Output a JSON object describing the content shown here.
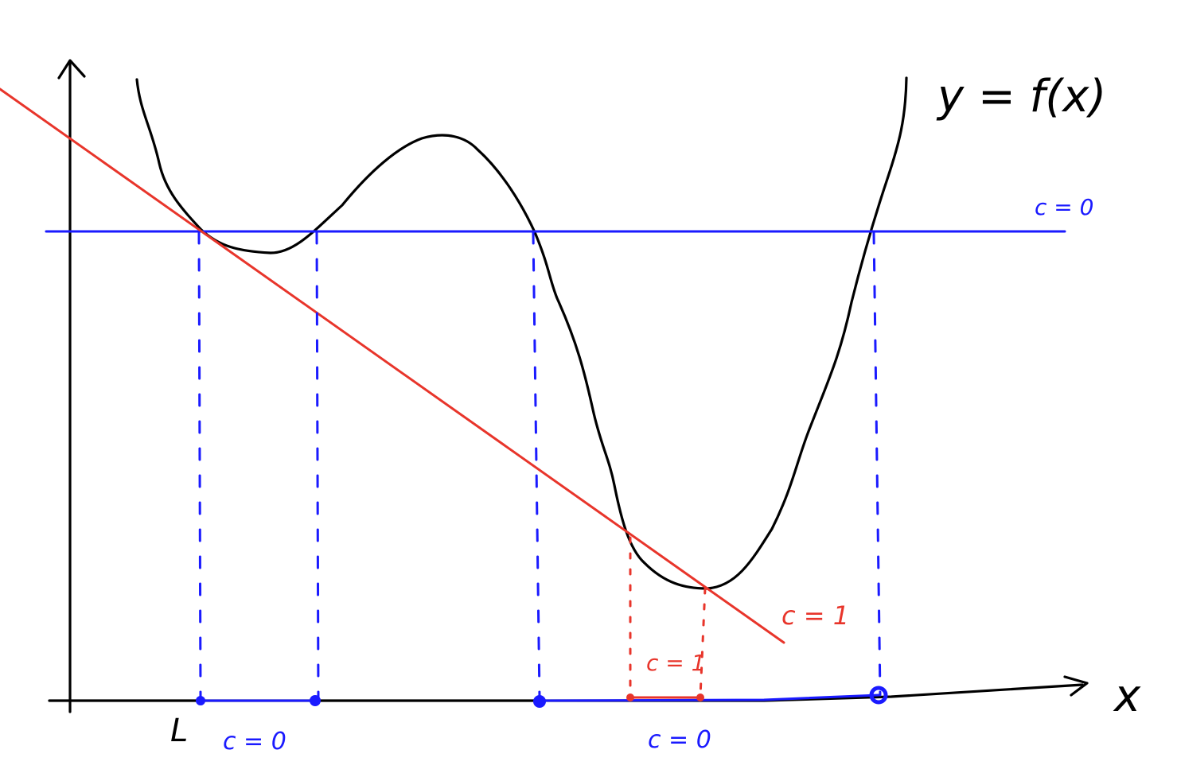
{
  "labels": {
    "function": "y = f(x)",
    "x_axis": "x",
    "point_l": "L",
    "blue_line": "c = 0",
    "red_line": "c = 1",
    "interval_red": "c = 1",
    "interval_left": "c = 0",
    "interval_right": "c = 0"
  },
  "colors": {
    "curve": "#000000",
    "blue": "#1a1aff",
    "red": "#e8352b"
  }
}
